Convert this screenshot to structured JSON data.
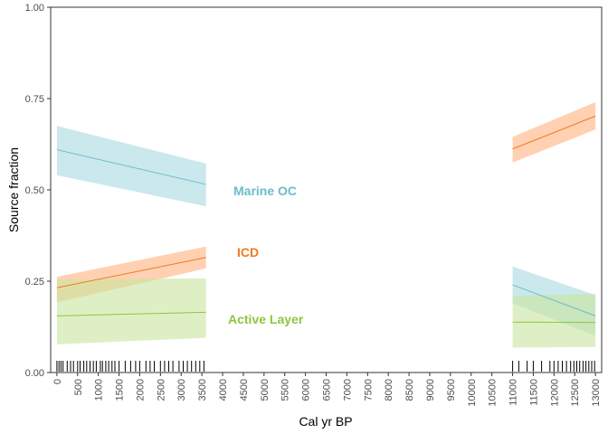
{
  "chart_data": {
    "type": "line",
    "xlabel": "Cal yr BP",
    "ylabel": "Source fraction",
    "xlim": [
      -150,
      13150
    ],
    "ylim": [
      0,
      1
    ],
    "x_ticks": [
      "0",
      "500",
      "1000",
      "1500",
      "2000",
      "2500",
      "3000",
      "3500",
      "4000",
      "4500",
      "5000",
      "5500",
      "6000",
      "6500",
      "7000",
      "7500",
      "8000",
      "8500",
      "9000",
      "9500",
      "10000",
      "10500",
      "11000",
      "11500",
      "12000",
      "12500",
      "13000"
    ],
    "y_ticks": [
      "0.00",
      "0.25",
      "0.50",
      "0.75",
      "1.00"
    ],
    "grid": false,
    "series": [
      {
        "name": "Marine OC",
        "color": "#6ABDCB",
        "band_color": "#A8D8E0",
        "segments": [
          {
            "x": [
              0,
              3600
            ],
            "y": [
              0.61,
              0.515
            ],
            "lower": [
              0.54,
              0.455
            ],
            "upper": [
              0.675,
              0.572
            ]
          },
          {
            "x": [
              11000,
              13000
            ],
            "y": [
              0.24,
              0.155
            ],
            "lower": [
              0.19,
              0.1
            ],
            "upper": [
              0.29,
              0.212
            ]
          }
        ]
      },
      {
        "name": "ICD",
        "color": "#F07A22",
        "band_color": "#FFB27F",
        "segments": [
          {
            "x": [
              0,
              3600
            ],
            "y": [
              0.232,
              0.315
            ],
            "lower": [
              0.192,
              0.285
            ],
            "upper": [
              0.262,
              0.345
            ]
          },
          {
            "x": [
              11000,
              13000
            ],
            "y": [
              0.612,
              0.702
            ],
            "lower": [
              0.575,
              0.665
            ],
            "upper": [
              0.645,
              0.74
            ]
          }
        ]
      },
      {
        "name": "Active Layer",
        "color": "#8DC63F",
        "band_color": "#C9E59E",
        "segments": [
          {
            "x": [
              0,
              3600
            ],
            "y": [
              0.155,
              0.165
            ],
            "lower": [
              0.077,
              0.095
            ],
            "upper": [
              0.255,
              0.258
            ]
          },
          {
            "x": [
              11000,
              13000
            ],
            "y": [
              0.138,
              0.137
            ],
            "lower": [
              0.068,
              0.07
            ],
            "upper": [
              0.21,
              0.215
            ]
          }
        ]
      }
    ],
    "rug": [
      0,
      50,
      100,
      150,
      250,
      330,
      400,
      500,
      560,
      650,
      720,
      800,
      880,
      950,
      1050,
      1100,
      1180,
      1250,
      1330,
      1400,
      1500,
      1650,
      1780,
      1900,
      2000,
      2150,
      2250,
      2350,
      2500,
      2600,
      2700,
      2800,
      2950,
      3050,
      3150,
      3250,
      3350,
      3450,
      3550,
      11000,
      11150,
      11350,
      11500,
      11700,
      11900,
      12000,
      12100,
      12200,
      12300,
      12400,
      12480,
      12550,
      12620,
      12700,
      12770,
      12840,
      12910,
      12980
    ]
  }
}
